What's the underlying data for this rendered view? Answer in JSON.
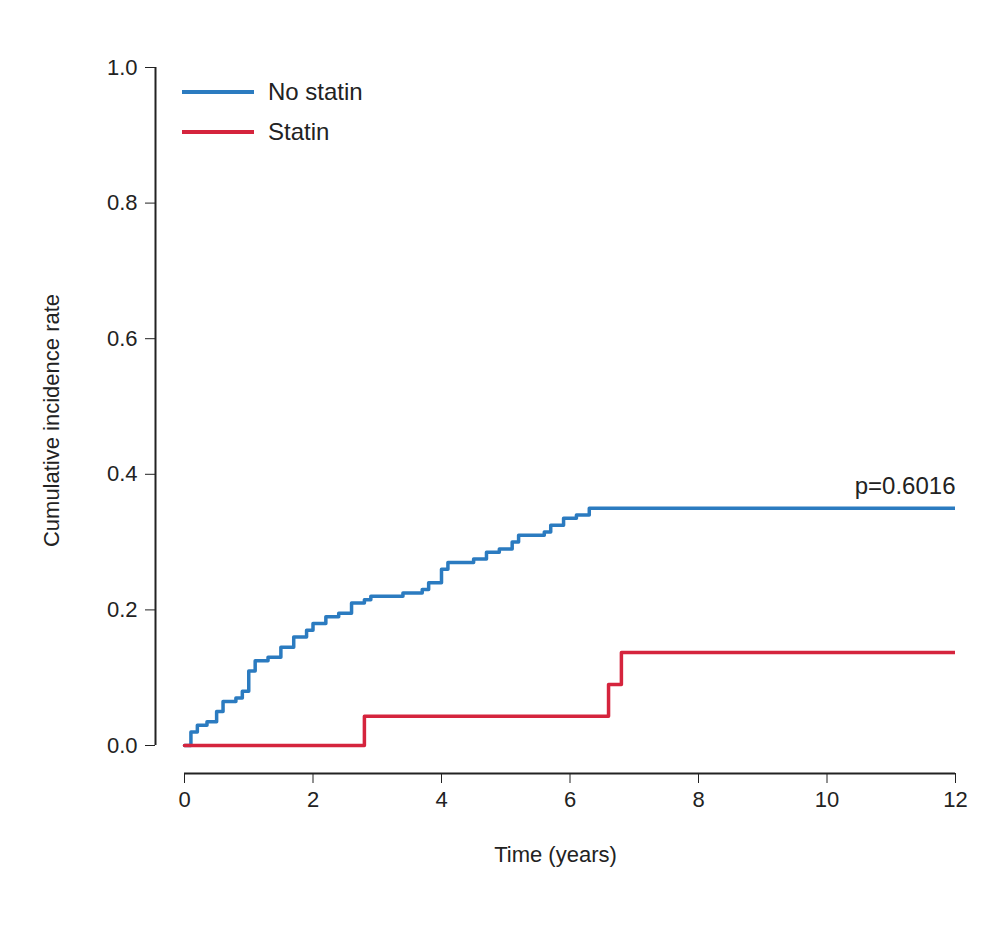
{
  "chart_data": {
    "type": "line",
    "line_style": "step",
    "xlabel": "Time (years)",
    "ylabel": "Cumulative incidence rate",
    "xlim": [
      0,
      12
    ],
    "xticks": [
      0,
      2,
      4,
      6,
      8,
      10,
      12
    ],
    "ylim": [
      0,
      1.0
    ],
    "yticks": [
      {
        "value": 0,
        "label": "0.0"
      },
      {
        "value": 0.2,
        "label": "0.2"
      },
      {
        "value": 0.4,
        "label": "0.4"
      },
      {
        "value": 0.6,
        "label": "0.6"
      },
      {
        "value": 0.8,
        "label": "0.8"
      },
      {
        "value": 1.0,
        "label": "1.0"
      }
    ],
    "grid": false,
    "legend": "top-left",
    "annotations": [
      {
        "text": "p=0.6016"
      }
    ],
    "series": [
      {
        "name": "No statin",
        "color": "#2b7bc0",
        "x": [
          0,
          0.1,
          0.2,
          0.35,
          0.5,
          0.6,
          0.8,
          0.9,
          1.0,
          1.1,
          1.3,
          1.5,
          1.7,
          1.9,
          2.0,
          2.2,
          2.4,
          2.6,
          2.8,
          2.9,
          3.4,
          3.7,
          3.8,
          4.0,
          4.1,
          4.5,
          4.7,
          4.9,
          5.1,
          5.2,
          5.6,
          5.7,
          5.9,
          6.1,
          6.3,
          12
        ],
        "values": [
          0,
          0.02,
          0.03,
          0.035,
          0.05,
          0.065,
          0.07,
          0.08,
          0.11,
          0.125,
          0.13,
          0.145,
          0.16,
          0.17,
          0.18,
          0.19,
          0.195,
          0.21,
          0.215,
          0.22,
          0.225,
          0.23,
          0.24,
          0.26,
          0.27,
          0.275,
          0.285,
          0.29,
          0.3,
          0.31,
          0.315,
          0.325,
          0.335,
          0.34,
          0.35,
          0.35
        ]
      },
      {
        "name": "Statin",
        "color": "#d5243d",
        "x": [
          0,
          2.8,
          6.6,
          6.8,
          12
        ],
        "values": [
          0,
          0.043,
          0.09,
          0.137,
          0.137
        ]
      }
    ]
  }
}
